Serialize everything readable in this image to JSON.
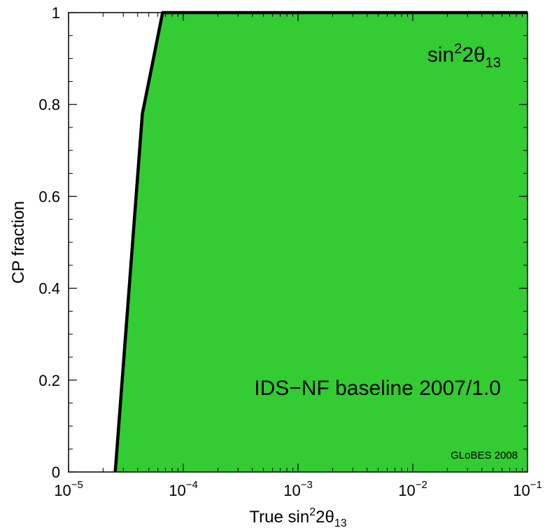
{
  "chart_data": {
    "type": "area",
    "x_scale": "log",
    "xlim": [
      1e-05,
      0.1
    ],
    "ylim": [
      0,
      1
    ],
    "xlabel": {
      "prefix": "True sin",
      "sup": "2",
      "mid": "2θ",
      "sub": "13"
    },
    "ylabel": "CP fraction",
    "x_ticks": [
      {
        "value": 1e-05,
        "base": "10",
        "exp": "−5"
      },
      {
        "value": 0.0001,
        "base": "10",
        "exp": "−4"
      },
      {
        "value": 0.001,
        "base": "10",
        "exp": "−3"
      },
      {
        "value": 0.01,
        "base": "10",
        "exp": "−2"
      },
      {
        "value": 0.1,
        "base": "10",
        "exp": "−1"
      }
    ],
    "y_ticks": [
      {
        "value": 0,
        "label": "0"
      },
      {
        "value": 0.2,
        "label": "0.2"
      },
      {
        "value": 0.4,
        "label": "0.4"
      },
      {
        "value": 0.6,
        "label": "0.6"
      },
      {
        "value": 0.8,
        "label": "0.8"
      },
      {
        "value": 1,
        "label": "1"
      }
    ],
    "series": [
      {
        "fill_color": "#33cc33",
        "line_color": "#000000",
        "boundary": [
          {
            "x": 2.55e-05,
            "y": 0.0
          },
          {
            "x": 4.4e-05,
            "y": 0.78
          },
          {
            "x": 5.2e-05,
            "y": 0.87
          },
          {
            "x": 6.6e-05,
            "y": 1.0
          }
        ],
        "fill_to_x": 0.1
      }
    ],
    "grid": false,
    "annotations": {
      "title": {
        "prefix": "sin",
        "sup": "2",
        "mid": "2θ",
        "sub": "13"
      },
      "label": "IDS−NF baseline 2007/1.0",
      "credit": "GLoBES 2008"
    }
  }
}
